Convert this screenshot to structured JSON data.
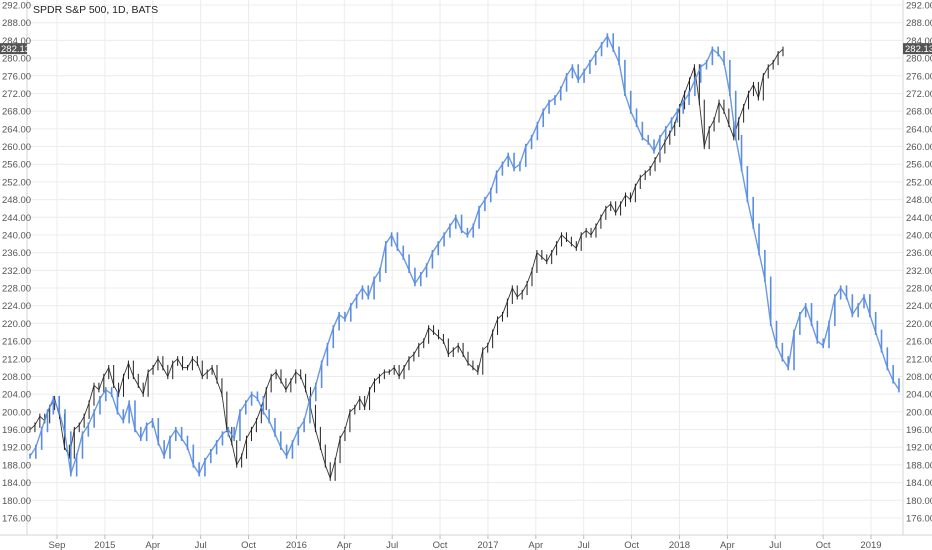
{
  "chart_data": {
    "type": "line",
    "title": "SPDR S&P 500, 1D, BATS",
    "last_price": "282.13",
    "ylim": [
      176,
      292
    ],
    "y_ticks": [
      "176.00",
      "180.00",
      "184.00",
      "188.00",
      "192.00",
      "196.00",
      "200.00",
      "204.00",
      "208.00",
      "212.00",
      "216.00",
      "220.00",
      "224.00",
      "228.00",
      "232.00",
      "236.00",
      "240.00",
      "244.00",
      "248.00",
      "252.00",
      "256.00",
      "260.00",
      "264.00",
      "268.00",
      "272.00",
      "276.00",
      "280.00",
      "284.00",
      "288.00",
      "292.00"
    ],
    "x_ticks": [
      "Sep",
      "2015",
      "Apr",
      "Jul",
      "Oct",
      "2016",
      "Apr",
      "Jul",
      "Oct",
      "2017",
      "Apr",
      "Jul",
      "Oct",
      "2018",
      "Apr",
      "Jul",
      "Oct",
      "2019"
    ],
    "grid": true,
    "series": [
      {
        "color": "#1f1f1f",
        "values": [
          196,
          197,
          199,
          198,
          201,
          203,
          199,
          192,
          190,
          196,
          197,
          199,
          202,
          206,
          205,
          208,
          210,
          206,
          204,
          208,
          211,
          208,
          206,
          204,
          209,
          210,
          212,
          210,
          208,
          211,
          212,
          210,
          210,
          212,
          211,
          208,
          209,
          210,
          207,
          204,
          196,
          193,
          188,
          190,
          194,
          196,
          198,
          201,
          205,
          208,
          209,
          207,
          205,
          207,
          209,
          208,
          205,
          201,
          196,
          192,
          188,
          185,
          189,
          194,
          196,
          200,
          201,
          203,
          201,
          205,
          207,
          208,
          209,
          209,
          210,
          208,
          210,
          212,
          213,
          215,
          216,
          219,
          218,
          217,
          216,
          213,
          214,
          215,
          213,
          211,
          210,
          209,
          214,
          215,
          218,
          221,
          222,
          225,
          228,
          226,
          227,
          229,
          232,
          236,
          235,
          234,
          236,
          238,
          240,
          239,
          238,
          237,
          240,
          241,
          240,
          242,
          244,
          246,
          247,
          245,
          247,
          249,
          248,
          251,
          253,
          254,
          255,
          257,
          259,
          261,
          263,
          265,
          269,
          272,
          275,
          278,
          270,
          260,
          264,
          266,
          270,
          268,
          265,
          262,
          266,
          269,
          272,
          274,
          271,
          276,
          278,
          279,
          281,
          282
        ]
      },
      {
        "color": "#5b8ee0",
        "values": [
          190,
          192,
          196,
          200,
          203,
          200,
          195,
          186,
          190,
          195,
          197,
          200,
          203,
          205,
          204,
          200,
          198,
          202,
          196,
          194,
          197,
          198,
          193,
          190,
          194,
          196,
          194,
          192,
          188,
          186,
          189,
          191,
          193,
          195,
          196,
          194,
          200,
          202,
          204,
          203,
          200,
          198,
          195,
          192,
          190,
          193,
          196,
          198,
          203,
          206,
          211,
          215,
          219,
          222,
          221,
          224,
          226,
          228,
          226,
          230,
          232,
          238,
          240,
          237,
          235,
          232,
          229,
          231,
          233,
          236,
          238,
          240,
          242,
          244,
          241,
          240,
          242,
          246,
          248,
          250,
          254,
          256,
          258,
          255,
          256,
          260,
          262,
          265,
          268,
          270,
          271,
          273,
          276,
          278,
          275,
          277,
          279,
          281,
          283,
          285,
          282,
          279,
          272,
          268,
          265,
          262,
          261,
          259,
          262,
          264,
          266,
          268,
          270,
          272,
          275,
          278,
          279,
          282,
          281,
          279,
          272,
          262,
          255,
          248,
          242,
          236,
          230,
          220,
          215,
          212,
          210,
          218,
          222,
          224,
          220,
          216,
          215,
          220,
          226,
          228,
          226,
          222,
          224,
          226,
          222,
          218,
          214,
          210,
          207,
          205
        ]
      }
    ]
  }
}
